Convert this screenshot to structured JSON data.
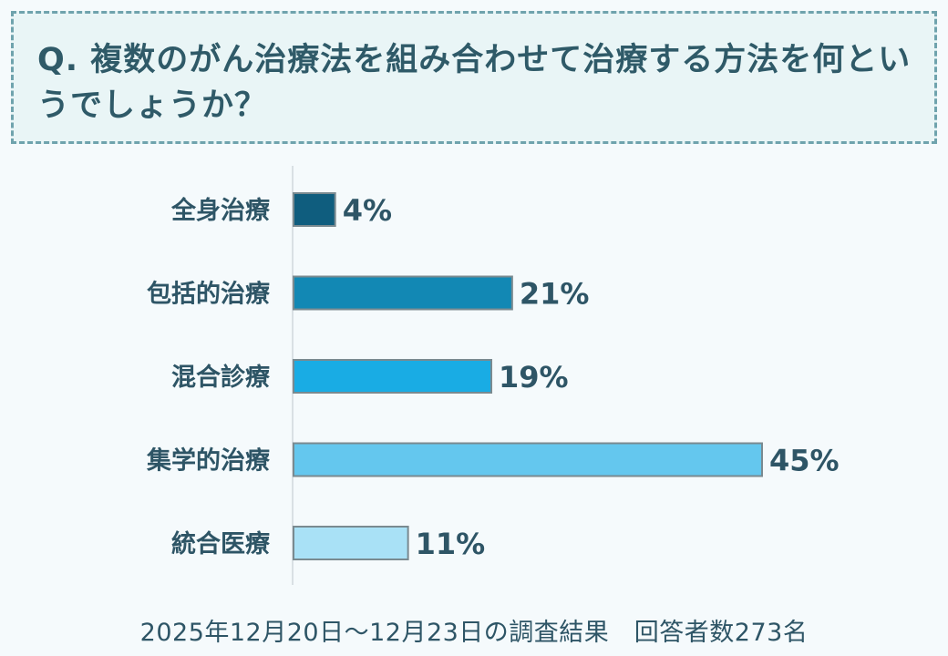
{
  "question": {
    "text": " Q. 複数のがん治療法を組み合わせて治療する方法を何というでしょうか？"
  },
  "colors": {
    "axis": "#d0d8dc",
    "bar_border": "#7a8a90",
    "label_text": "#2e5566"
  },
  "chart_data": {
    "type": "bar",
    "orientation": "horizontal",
    "categories": [
      "全身治療",
      "包括的治療",
      "混合診療",
      "集学的治療",
      "統合医療"
    ],
    "values": [
      4,
      21,
      19,
      45,
      11
    ],
    "value_labels": [
      "4%",
      "21%",
      "19%",
      "45%",
      "11%"
    ],
    "bar_colors": [
      "#0f5d7e",
      "#1288b4",
      "#19ace4",
      "#64c7ee",
      "#a9e1f6"
    ],
    "unit": "%",
    "title": "",
    "xlabel": "",
    "ylabel": "",
    "xlim": [
      0,
      45
    ],
    "grid": false,
    "legend": "none"
  },
  "footer": {
    "text": "2025年12月20日～12月23日の調査結果　回答者数273名"
  }
}
